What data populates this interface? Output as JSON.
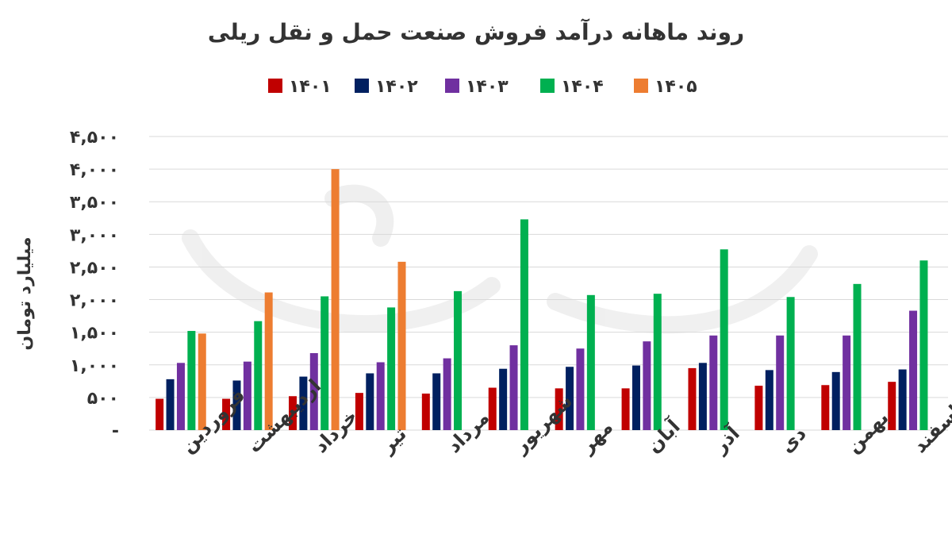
{
  "chart_data": {
    "type": "bar",
    "title": "روند ماهانه درآمد فروش صنعت حمل و نقل ریلی",
    "ylabel": "میلیارد تومان",
    "xlabel": "",
    "ylim": [
      0,
      4500
    ],
    "yticks": [
      {
        "value": 0,
        "label": "-"
      },
      {
        "value": 500,
        "label": "۵۰۰"
      },
      {
        "value": 1000,
        "label": "۱,۰۰۰"
      },
      {
        "value": 1500,
        "label": "۱,۵۰۰"
      },
      {
        "value": 2000,
        "label": "۲,۰۰۰"
      },
      {
        "value": 2500,
        "label": "۲,۵۰۰"
      },
      {
        "value": 3000,
        "label": "۳,۰۰۰"
      },
      {
        "value": 3500,
        "label": "۳,۵۰۰"
      },
      {
        "value": 4000,
        "label": "۴,۰۰۰"
      },
      {
        "value": 4500,
        "label": "۴,۵۰۰"
      }
    ],
    "grid": true,
    "legend_position": "top",
    "categories": [
      "فروردین",
      "اردیبهشت",
      "خرداد",
      "تیر",
      "مرداد",
      "شهریور",
      "مهر",
      "آبان",
      "آذر",
      "دی",
      "بهمن",
      "اسفند"
    ],
    "series": [
      {
        "name": "۱۴۰۱",
        "color": "#c00000",
        "values": [
          480,
          480,
          520,
          570,
          560,
          650,
          640,
          640,
          950,
          680,
          690,
          740
        ]
      },
      {
        "name": "۱۴۰۲",
        "color": "#002060",
        "values": [
          780,
          760,
          820,
          870,
          870,
          940,
          970,
          990,
          1030,
          920,
          890,
          930
        ]
      },
      {
        "name": "۱۴۰۳",
        "color": "#7030a0",
        "values": [
          1030,
          1050,
          1180,
          1040,
          1100,
          1300,
          1250,
          1360,
          1450,
          1450,
          1450,
          1830
        ]
      },
      {
        "name": "۱۴۰۴",
        "color": "#00b050",
        "values": [
          1520,
          1670,
          2050,
          1880,
          2130,
          3230,
          2070,
          2090,
          2770,
          2040,
          2240,
          2600
        ]
      },
      {
        "name": "۱۴۰۵",
        "color": "#ed7d31",
        "values": [
          1480,
          2110,
          4000,
          2580,
          null,
          null,
          null,
          null,
          null,
          null,
          null,
          null
        ]
      }
    ]
  }
}
